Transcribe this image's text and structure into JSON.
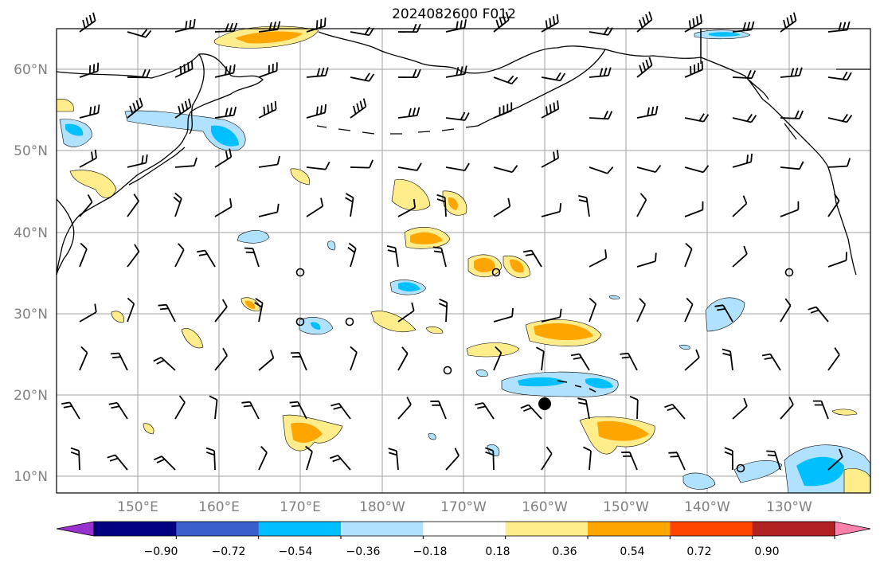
{
  "title": "2024082600 F012",
  "map": {
    "lat_labels": [
      "60°N",
      "50°N",
      "40°N",
      "30°N",
      "20°N",
      "10°N"
    ],
    "lon_labels": [
      "150°E",
      "160°E",
      "170°E",
      "180°W",
      "170°W",
      "160°W",
      "150°W",
      "140°W",
      "130°W"
    ],
    "extent": {
      "lon_west": 140,
      "lon_east": 240,
      "lat_south": 8,
      "lat_north": 65
    }
  },
  "colorbar": {
    "colors": [
      "#9932cc",
      "#000080",
      "#3a5fcd",
      "#00bfff",
      "#b0e2ff",
      "#ffffff",
      "#ffec8b",
      "#ffa500",
      "#ff4500",
      "#b22222",
      "#ff82ab"
    ],
    "labels": [
      "−0.90",
      "−0.72",
      "−0.54",
      "−0.36",
      "−0.18",
      "0.18",
      "0.36",
      "0.54",
      "0.72",
      "0.90"
    ],
    "extend": "both"
  },
  "colors": {
    "yellow": "#ffec8b",
    "orange": "#ffa500",
    "lightblue": "#b0e2ff",
    "deepblue": "#00bfff",
    "grid": "#a0a0a0"
  }
}
